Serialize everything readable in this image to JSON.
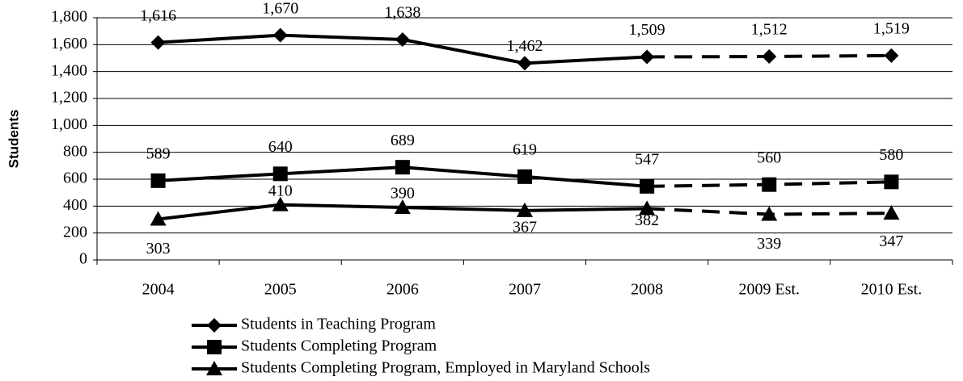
{
  "chart_data": {
    "type": "line",
    "y_axis_label": "Students",
    "categories": [
      "2004",
      "2005",
      "2006",
      "2007",
      "2008",
      "2009 Est.",
      "2010 Est."
    ],
    "dashed_from_index": 4,
    "series": [
      {
        "name": "Students in Teaching Program",
        "color": "#000000",
        "marker": "diamond",
        "values": [
          1616,
          1670,
          1638,
          1462,
          1509,
          1512,
          1519
        ],
        "value_labels": [
          "1,616",
          "1,670",
          "1,638",
          "1,462",
          "1,509",
          "1,512",
          "1,519"
        ]
      },
      {
        "name": "Students Completing Program",
        "color": "#000000",
        "marker": "square",
        "values": [
          589,
          640,
          689,
          619,
          547,
          560,
          580
        ]
      },
      {
        "name": "Students Completing Program, Employed in Maryland Schools",
        "color": "#000000",
        "marker": "triangle",
        "values": [
          303,
          410,
          390,
          367,
          382,
          339,
          347
        ]
      }
    ],
    "ylim": [
      0,
      1800
    ],
    "yticks": [
      0,
      200,
      400,
      600,
      800,
      {
        "value": 1000,
        "label": "1,000"
      },
      {
        "value": 1200,
        "label": "1,200"
      },
      {
        "value": 1400,
        "label": "1,400"
      },
      {
        "value": 1600,
        "label": "1,600"
      },
      {
        "value": 1800,
        "label": "1,800"
      }
    ],
    "grid": true
  }
}
